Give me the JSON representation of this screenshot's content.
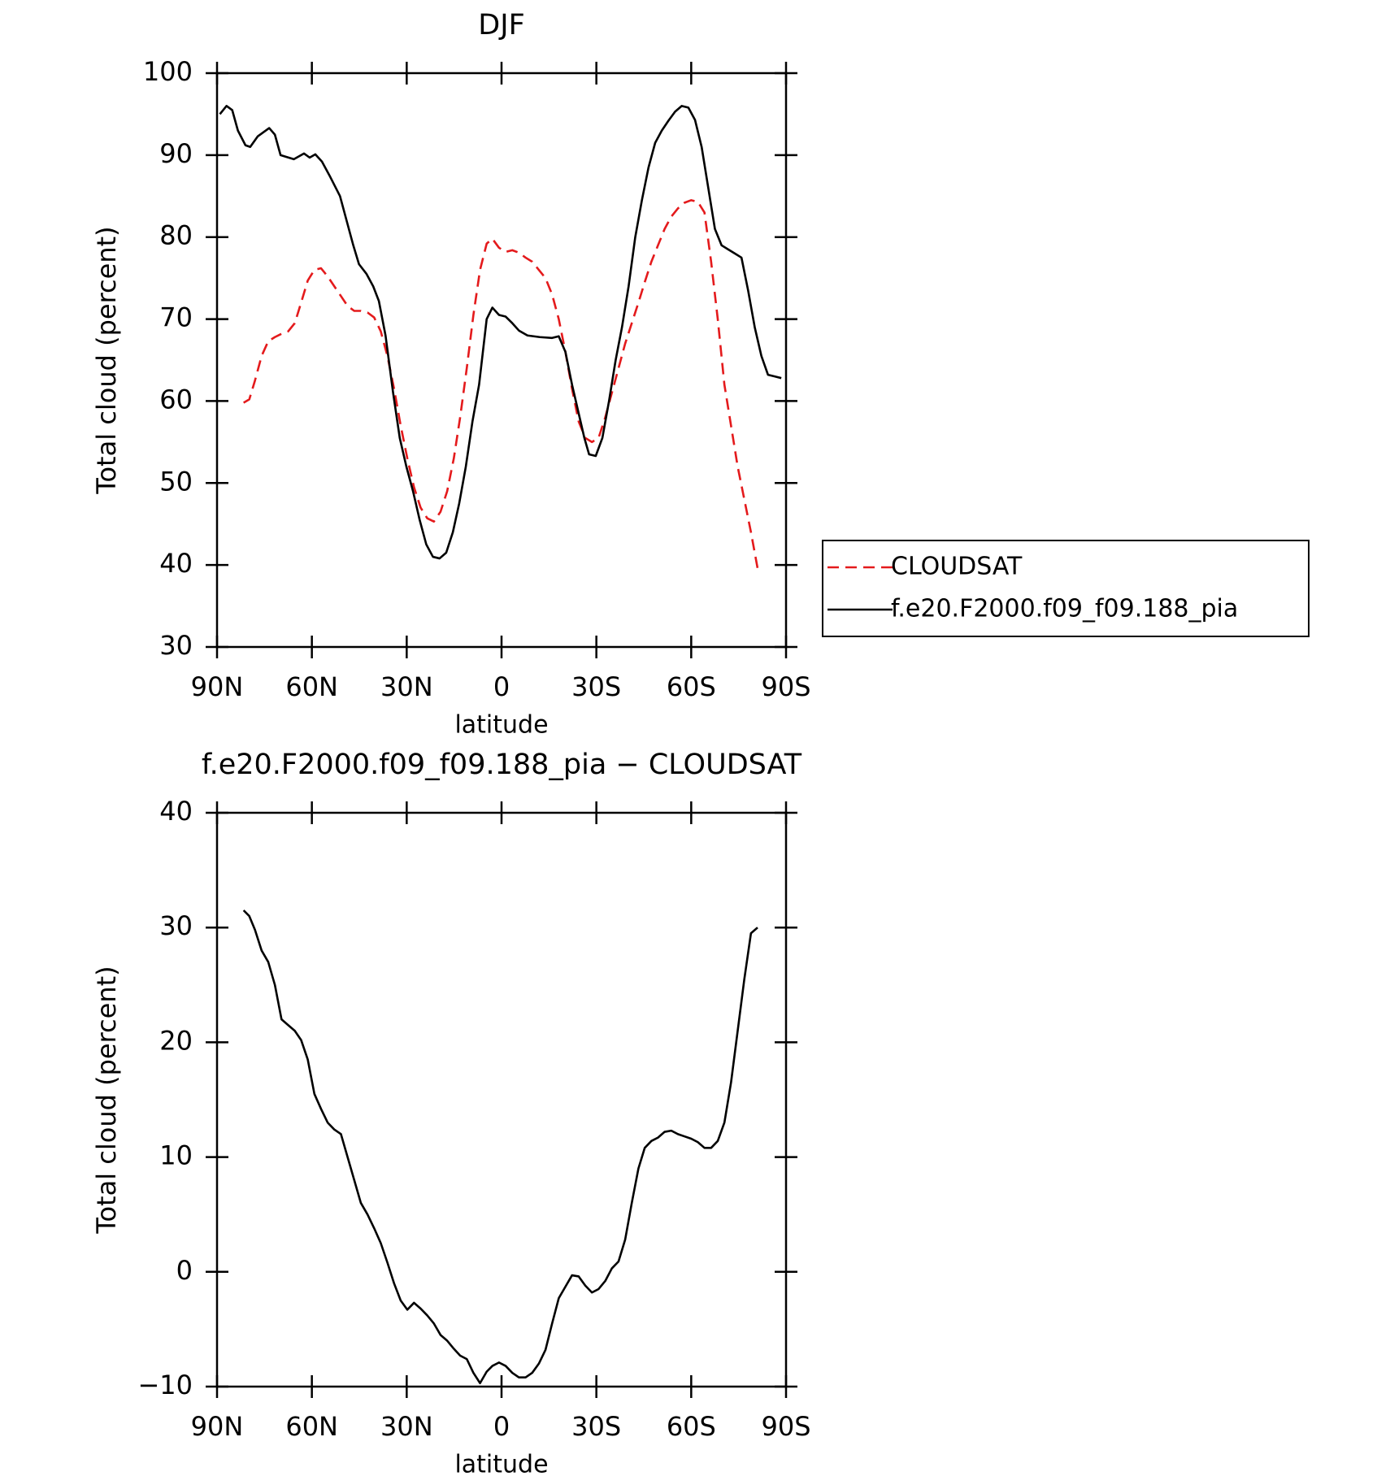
{
  "chart_data": [
    {
      "type": "line",
      "title": "DJF",
      "xlabel": "latitude",
      "ylabel": "Total cloud (percent)",
      "xlim": [
        90,
        -90
      ],
      "xticks": [
        {
          "value": 90,
          "label": "90N"
        },
        {
          "value": 60,
          "label": "60N"
        },
        {
          "value": 30,
          "label": "30N"
        },
        0,
        {
          "value": -30,
          "label": "30S"
        },
        {
          "value": -60,
          "label": "60S"
        },
        {
          "value": -90,
          "label": "90S"
        }
      ],
      "ylim": [
        30,
        100
      ],
      "yticks": [
        30,
        40,
        50,
        60,
        70,
        80,
        90,
        100
      ],
      "legend": "outside-right",
      "series": [
        {
          "name": "CLOUDSAT",
          "color": "#e41a1c",
          "line_style": "dashed",
          "x": [
            81.6,
            79.8,
            78,
            75.9,
            73.8,
            71.7,
            69.6,
            67.5,
            65.4,
            63.4,
            61.3,
            59.2,
            57.1,
            55,
            52.9,
            50.8,
            48.7,
            46.6,
            44.5,
            42.4,
            40.3,
            38.2,
            36.1,
            34,
            31.9,
            29.8,
            27.7,
            25.6,
            23.5,
            21.4,
            19.3,
            17.2,
            15.1,
            13.1,
            11,
            8.9,
            6.8,
            4.7,
            2.9,
            0.8,
            -1.3,
            -3.4,
            -5.5,
            -7.6,
            -9.7,
            -11.8,
            -13.9,
            -16,
            -18.1,
            -20.2,
            -22.3,
            -24.4,
            -26.5,
            -28.6,
            -30.7,
            -32.8,
            -34.9,
            -37,
            -39.1,
            -41.2,
            -43.3,
            -45.3,
            -47.4,
            -49.5,
            -51.6,
            -53.7,
            -55.8,
            -57.9,
            -60,
            -62.1,
            -64.2,
            -66.3,
            -68.4,
            -70.5,
            -72.6,
            -74.7,
            -76.8,
            -78.9,
            -81
          ],
          "values": [
            59.8,
            60.2,
            62.5,
            65.5,
            67.3,
            67.8,
            68.2,
            68.5,
            69.5,
            72,
            74.7,
            76,
            76.2,
            75.2,
            74,
            72.8,
            71.6,
            71,
            71,
            70.8,
            70.2,
            68.5,
            65.5,
            61.5,
            57,
            53,
            49.5,
            47,
            45.7,
            45.3,
            46.5,
            49,
            53,
            58,
            64,
            70.5,
            76,
            79.2,
            79.8,
            78.7,
            78.2,
            78.4,
            78.1,
            77.5,
            77,
            76,
            75,
            73,
            70,
            66,
            61.5,
            57.5,
            55.5,
            55,
            55.5,
            58,
            61,
            64,
            67,
            69.5,
            72,
            74.5,
            77,
            79,
            81,
            82.5,
            83.5,
            84.2,
            84.5,
            84.3,
            83,
            77,
            70,
            62,
            57,
            52,
            48,
            44,
            39.6
          ]
        },
        {
          "name": "f.e20.F2000.f09_f09.188_pia",
          "color": "#000000",
          "line_style": "solid",
          "x": [
            89.1,
            87,
            85.2,
            83.4,
            81,
            79.5,
            77.1,
            73.5,
            71.7,
            69.9,
            65.7,
            62.5,
            60.7,
            58.9,
            56.8,
            54.4,
            51.1,
            49,
            46.9,
            45.1,
            42.7,
            40.6,
            38.8,
            36.7,
            34.3,
            32.2,
            30.1,
            28,
            25.9,
            23.8,
            21.7,
            19.6,
            17.5,
            15.4,
            13.4,
            11.3,
            9.2,
            7.1,
            4.7,
            2.9,
            0.8,
            -1.3,
            -3.4,
            -5.5,
            -8.2,
            -12.1,
            -16,
            -18.1,
            -20.2,
            -22.3,
            -24.4,
            -26.2,
            -27.7,
            -29.8,
            -31.9,
            -34,
            -36.1,
            -38.1,
            -40.2,
            -42.3,
            -44.4,
            -46.5,
            -48.6,
            -50.7,
            -52.8,
            -54.9,
            -57,
            -59.1,
            -61.2,
            -63.3,
            -65.4,
            -67.5,
            -69.6,
            -71.7,
            -73.8,
            -75.9,
            -78,
            -80.1,
            -82.2,
            -84.3,
            -86.4,
            -88.5
          ],
          "values": [
            95,
            96,
            95.5,
            93,
            91.2,
            91,
            92.3,
            93.3,
            92.5,
            90,
            89.5,
            90.2,
            89.7,
            90.1,
            89.2,
            87.5,
            85,
            82,
            79,
            76.7,
            75.5,
            74,
            72.2,
            68,
            61,
            55.5,
            52,
            49,
            45.5,
            42.5,
            41,
            40.8,
            41.5,
            44,
            47.5,
            52,
            57.5,
            62,
            70,
            71.4,
            70.5,
            70.3,
            69.5,
            68.6,
            68,
            67.8,
            67.7,
            67.9,
            66,
            62,
            58.5,
            55.5,
            53.5,
            53.3,
            55.5,
            60,
            65,
            69,
            74,
            80,
            84.5,
            88.5,
            91.5,
            93,
            94.2,
            95.3,
            96,
            95.8,
            94.3,
            91,
            86,
            81,
            79,
            78.5,
            78,
            77.5,
            73.5,
            69,
            65.5,
            63.2,
            63,
            62.8
          ]
        }
      ]
    },
    {
      "type": "line",
      "title": "f.e20.F2000.f09_f09.188_pia − CLOUDSAT",
      "xlabel": "latitude",
      "ylabel": "Total cloud (percent)",
      "xlim": [
        90,
        -90
      ],
      "xticks": [
        {
          "value": 90,
          "label": "90N"
        },
        {
          "value": 60,
          "label": "60N"
        },
        {
          "value": 30,
          "label": "30N"
        },
        0,
        {
          "value": -30,
          "label": "30S"
        },
        {
          "value": -60,
          "label": "60S"
        },
        {
          "value": -90,
          "label": "90S"
        }
      ],
      "ylim": [
        -10,
        40
      ],
      "yticks": [
        {
          "value": -10,
          "label": "−10"
        },
        0,
        10,
        20,
        30,
        40
      ],
      "series": [
        {
          "color": "#000000",
          "line_style": "solid",
          "x": [
            81.6,
            79.8,
            78,
            75.9,
            73.8,
            71.7,
            69.6,
            67.5,
            65.4,
            63.4,
            61.3,
            59.2,
            57.1,
            55,
            52.9,
            50.8,
            48.7,
            46.6,
            44.5,
            42.4,
            40.3,
            38.2,
            36.1,
            34,
            31.9,
            29.8,
            27.7,
            25.6,
            23.5,
            21.4,
            19.3,
            17.2,
            15.1,
            13.1,
            11,
            8.9,
            6.8,
            4.7,
            2.9,
            0.8,
            -1.3,
            -3.4,
            -5.5,
            -7.6,
            -9.7,
            -11.8,
            -13.9,
            -16,
            -18.1,
            -20.2,
            -22.3,
            -24.4,
            -26.5,
            -28.6,
            -30.7,
            -32.8,
            -34.9,
            -37,
            -39.1,
            -41.2,
            -43.3,
            -45.3,
            -47.4,
            -49.5,
            -51.6,
            -53.7,
            -55.8,
            -57.9,
            -60,
            -62.1,
            -64.2,
            -66.3,
            -68.4,
            -70.5,
            -72.6,
            -74.7,
            -76.8,
            -78.9,
            -81
          ],
          "values": [
            31.5,
            31,
            29.8,
            28,
            27,
            25,
            22,
            21.5,
            21,
            20.2,
            18.5,
            15.5,
            14.2,
            13,
            12.4,
            12,
            10,
            8,
            6,
            5,
            3.8,
            2.5,
            0.8,
            -1,
            -2.5,
            -3.3,
            -2.7,
            -3.2,
            -3.8,
            -4.5,
            -5.5,
            -6,
            -6.7,
            -7.3,
            -7.6,
            -8.8,
            -9.7,
            -8.7,
            -8.2,
            -7.9,
            -8.2,
            -8.8,
            -9.2,
            -9.2,
            -8.8,
            -8,
            -6.8,
            -4.5,
            -2.3,
            -1.3,
            -0.3,
            -0.4,
            -1.2,
            -1.8,
            -1.5,
            -0.8,
            0.3,
            0.9,
            2.8,
            6,
            9,
            10.8,
            11.4,
            11.7,
            12.2,
            12.3,
            12,
            11.8,
            11.6,
            11.3,
            10.8,
            10.8,
            11.4,
            13,
            16.5,
            21,
            25.5,
            29.5,
            30
          ]
        }
      ]
    }
  ]
}
